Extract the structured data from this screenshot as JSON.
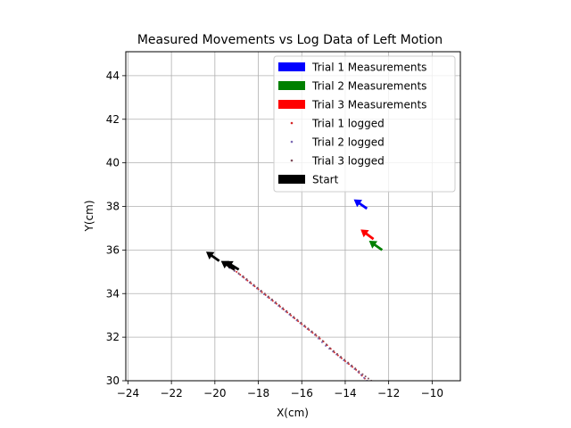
{
  "chart_data": {
    "type": "scatter",
    "title": "Measured Movements vs Log Data of Left Motion",
    "xlabel": "X(cm)",
    "ylabel": "Y(cm)",
    "xlim": [
      -24.1,
      -8.7
    ],
    "ylim": [
      30,
      45.1
    ],
    "x_ticks": [
      -24,
      -22,
      -20,
      -18,
      -16,
      -14,
      -12,
      -10
    ],
    "y_ticks": [
      30,
      32,
      34,
      36,
      38,
      40,
      42,
      44
    ],
    "x_tick_labels": [
      "−24",
      "−22",
      "−20",
      "−18",
      "−16",
      "−14",
      "−12",
      "−10"
    ],
    "y_tick_labels": [
      "30",
      "32",
      "34",
      "36",
      "38",
      "40",
      "42",
      "44"
    ],
    "grid": true,
    "legend_position": "upper-right",
    "legend": [
      {
        "label": "Trial 1 Measurements",
        "kind": "arrow",
        "color": "#0000ff"
      },
      {
        "label": "Trial 2 Measurements",
        "kind": "arrow",
        "color": "#008000"
      },
      {
        "label": "Trial 3 Measurements",
        "kind": "arrow",
        "color": "#ff0000"
      },
      {
        "label": "Trial 1 logged",
        "kind": "dot",
        "color": "#d62728"
      },
      {
        "label": "Trial 2 logged",
        "kind": "dot",
        "color": "#7b68b3"
      },
      {
        "label": "Trial 3 logged",
        "kind": "dot",
        "color": "#7f4b5a"
      },
      {
        "label": "Start",
        "kind": "arrow",
        "color": "#000000"
      }
    ],
    "arrows": [
      {
        "series": "Start",
        "x": -19.8,
        "y": 35.5,
        "heading_deg": 145,
        "color": "#000000"
      },
      {
        "series": "Start",
        "x": -19.1,
        "y": 35.1,
        "heading_deg": 147,
        "color": "#000000"
      },
      {
        "series": "Start",
        "x": -18.9,
        "y": 35.1,
        "heading_deg": 148,
        "color": "#000000"
      },
      {
        "series": "Trial 1 Measurements",
        "x": -13.0,
        "y": 37.9,
        "heading_deg": 145,
        "color": "#0000ff"
      },
      {
        "series": "Trial 2 Measurements",
        "x": -12.3,
        "y": 36.0,
        "heading_deg": 145,
        "color": "#008000"
      },
      {
        "series": "Trial 3 Measurements",
        "x": -12.7,
        "y": 36.5,
        "heading_deg": 143,
        "color": "#ff0000"
      }
    ],
    "series": [
      {
        "name": "Trial 1 logged",
        "color": "#d62728",
        "points": [
          [
            -19.6,
            35.4
          ],
          [
            -19.0,
            35.0
          ],
          [
            -18.5,
            34.6
          ],
          [
            -18.0,
            34.2
          ],
          [
            -17.5,
            33.8
          ],
          [
            -17.0,
            33.4
          ],
          [
            -16.5,
            33.0
          ],
          [
            -16.0,
            32.6
          ],
          [
            -15.5,
            32.2
          ],
          [
            -15.0,
            31.8
          ],
          [
            -14.5,
            31.3
          ],
          [
            -14.0,
            30.9
          ],
          [
            -13.5,
            30.5
          ],
          [
            -13.1,
            30.1
          ]
        ]
      },
      {
        "name": "Trial 2 logged",
        "color": "#7b68b3",
        "points": [
          [
            -19.5,
            35.3
          ],
          [
            -18.9,
            34.9
          ],
          [
            -18.4,
            34.5
          ],
          [
            -17.9,
            34.1
          ],
          [
            -17.4,
            33.7
          ],
          [
            -16.9,
            33.3
          ],
          [
            -16.4,
            32.9
          ],
          [
            -15.9,
            32.5
          ],
          [
            -15.4,
            32.1
          ],
          [
            -14.9,
            31.6
          ],
          [
            -14.4,
            31.2
          ],
          [
            -13.9,
            30.8
          ],
          [
            -13.4,
            30.4
          ],
          [
            -13.0,
            30.0
          ]
        ]
      },
      {
        "name": "Trial 3 logged",
        "color": "#7f4b5a",
        "points": [
          [
            -19.3,
            35.2
          ],
          [
            -18.7,
            34.8
          ],
          [
            -18.2,
            34.4
          ],
          [
            -17.7,
            34.0
          ],
          [
            -17.2,
            33.6
          ],
          [
            -16.7,
            33.2
          ],
          [
            -16.2,
            32.8
          ],
          [
            -15.7,
            32.4
          ],
          [
            -15.2,
            32.0
          ],
          [
            -14.7,
            31.5
          ],
          [
            -14.2,
            31.1
          ],
          [
            -13.7,
            30.7
          ],
          [
            -13.2,
            30.3
          ],
          [
            -12.8,
            30.0
          ]
        ]
      }
    ]
  }
}
